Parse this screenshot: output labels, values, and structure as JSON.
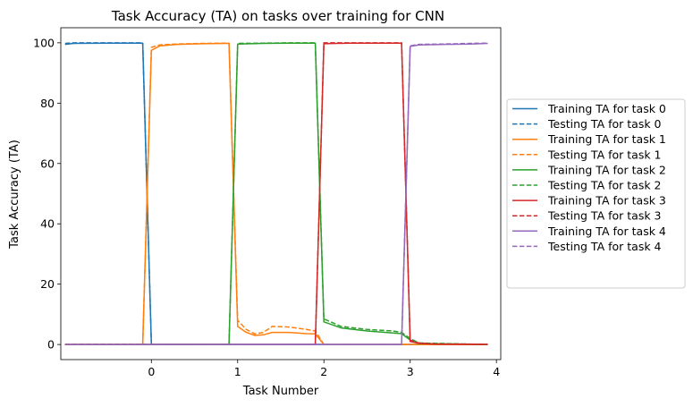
{
  "chart_data": {
    "type": "line",
    "title": "Task Accuracy (TA) on tasks over training for CNN",
    "xlabel": "Task Number",
    "ylabel": "Task Accuracy (TA)",
    "xlim": [
      -1.05,
      4.05
    ],
    "ylim": [
      -5,
      105
    ],
    "xticks": [
      0,
      1,
      2,
      3,
      4
    ],
    "yticks": [
      0,
      20,
      40,
      60,
      80,
      100
    ],
    "legend_position": "center-right outside",
    "grid": false,
    "colors": [
      "#1f77b4",
      "#ff7f0e",
      "#2ca02c",
      "#d62728",
      "#9467bd"
    ],
    "series": [
      {
        "name": "Training TA for task 0",
        "color": "#1f77b4",
        "dash": false,
        "x": [
          -1.0,
          -0.9,
          -0.5,
          -0.1,
          0.0,
          1.0,
          2.0,
          3.0,
          3.9
        ],
        "y": [
          99.5,
          99.8,
          99.9,
          99.9,
          0,
          0,
          0,
          0,
          0
        ]
      },
      {
        "name": "Testing TA for task 0",
        "color": "#1f77b4",
        "dash": true,
        "x": [
          -1.0,
          -0.9,
          -0.5,
          -0.1,
          0.0,
          1.0,
          2.0,
          3.0,
          3.9
        ],
        "y": [
          99.8,
          100,
          100,
          100,
          0,
          0,
          0,
          0,
          0
        ]
      },
      {
        "name": "Training TA for task 1",
        "color": "#ff7f0e",
        "dash": false,
        "x": [
          -1.0,
          -0.1,
          0.0,
          0.1,
          0.3,
          0.6,
          0.9,
          1.0,
          1.1,
          1.2,
          1.3,
          1.4,
          1.6,
          1.8,
          1.9,
          2.0,
          3.0,
          3.9
        ],
        "y": [
          0,
          0,
          97.5,
          99.0,
          99.5,
          99.7,
          99.8,
          6.0,
          4.0,
          3.0,
          3.2,
          4.0,
          4.0,
          3.6,
          3.5,
          0,
          0,
          0
        ]
      },
      {
        "name": "Testing TA for task 1",
        "color": "#ff7f0e",
        "dash": true,
        "x": [
          -1.0,
          -0.1,
          0.0,
          0.1,
          0.3,
          0.6,
          0.9,
          1.0,
          1.1,
          1.2,
          1.3,
          1.4,
          1.6,
          1.8,
          1.9,
          2.0,
          3.0,
          3.9
        ],
        "y": [
          0,
          0,
          98.5,
          99.3,
          99.6,
          99.8,
          99.9,
          8.0,
          5.0,
          3.5,
          4.0,
          6.0,
          5.8,
          5.0,
          4.5,
          0,
          0,
          0
        ]
      },
      {
        "name": "Training TA for task 2",
        "color": "#2ca02c",
        "dash": false,
        "x": [
          -1.0,
          0.0,
          0.9,
          1.0,
          1.3,
          1.6,
          1.9,
          2.0,
          2.2,
          2.5,
          2.8,
          2.9,
          3.0,
          3.1,
          3.9
        ],
        "y": [
          0,
          0,
          0,
          99.6,
          99.8,
          99.9,
          99.9,
          7.5,
          5.5,
          4.5,
          3.8,
          3.6,
          1.5,
          0.3,
          0
        ]
      },
      {
        "name": "Testing TA for task 2",
        "color": "#2ca02c",
        "dash": true,
        "x": [
          -1.0,
          0.0,
          0.9,
          1.0,
          1.3,
          1.6,
          1.9,
          2.0,
          2.2,
          2.5,
          2.8,
          2.9,
          3.0,
          3.1,
          3.9
        ],
        "y": [
          0,
          0,
          0,
          99.8,
          99.9,
          100,
          100,
          8.5,
          6.0,
          5.0,
          4.5,
          4.0,
          2.0,
          0.5,
          0
        ]
      },
      {
        "name": "Training TA for task 3",
        "color": "#d62728",
        "dash": false,
        "x": [
          -1.0,
          1.0,
          1.9,
          2.0,
          2.3,
          2.6,
          2.9,
          3.0,
          3.1,
          3.3,
          3.9
        ],
        "y": [
          0,
          0,
          0,
          99.7,
          99.9,
          99.9,
          99.9,
          1.0,
          0.4,
          0.1,
          0
        ]
      },
      {
        "name": "Testing TA for task 3",
        "color": "#d62728",
        "dash": true,
        "x": [
          -1.0,
          1.0,
          1.9,
          2.0,
          2.3,
          2.6,
          2.9,
          3.0,
          3.1,
          3.3,
          3.9
        ],
        "y": [
          0,
          0,
          0,
          100,
          100,
          100,
          100,
          1.5,
          0.5,
          0.2,
          0.1
        ]
      },
      {
        "name": "Training TA for task 4",
        "color": "#9467bd",
        "dash": false,
        "x": [
          -1.0,
          2.0,
          2.9,
          3.0,
          3.1,
          3.4,
          3.7,
          3.9
        ],
        "y": [
          0,
          0,
          0,
          98.8,
          99.3,
          99.5,
          99.6,
          99.8
        ]
      },
      {
        "name": "Testing TA for task 4",
        "color": "#9467bd",
        "dash": true,
        "x": [
          -1.0,
          2.0,
          2.9,
          3.0,
          3.1,
          3.4,
          3.7,
          3.9
        ],
        "y": [
          0,
          0,
          0,
          99.0,
          99.5,
          99.6,
          99.8,
          99.9
        ]
      }
    ]
  }
}
